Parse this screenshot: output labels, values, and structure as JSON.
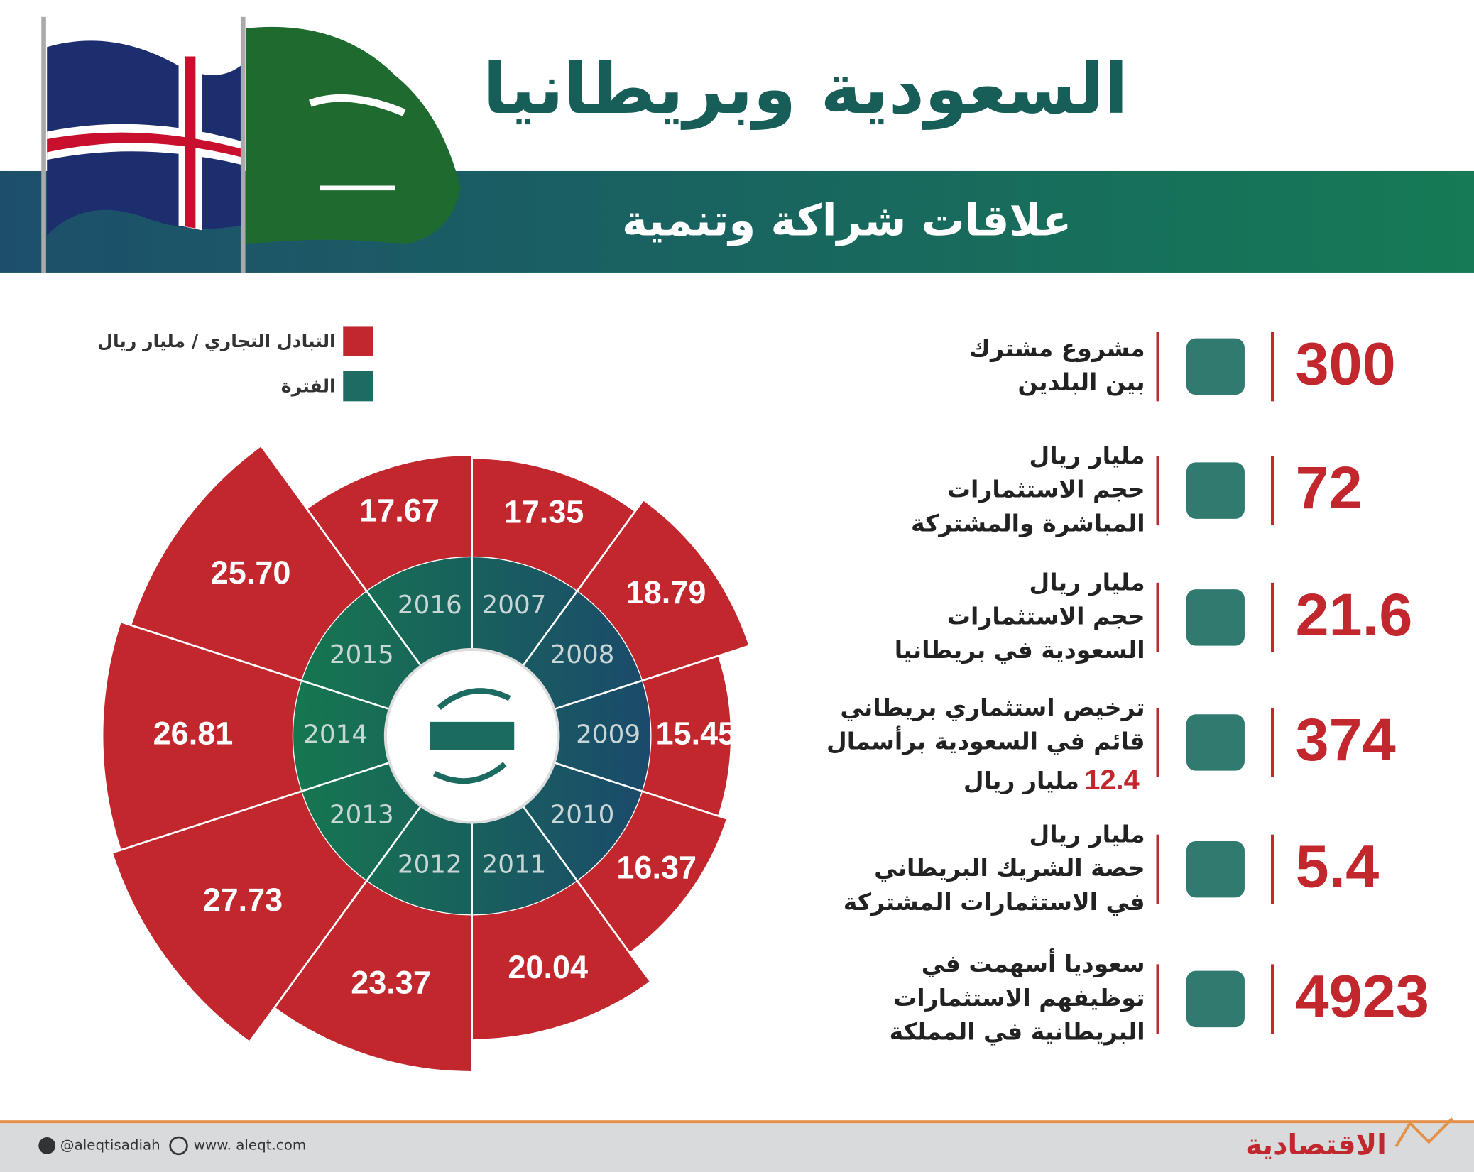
{
  "header": {
    "title": "السعودية وبريطانيا",
    "subtitle": "علاقات شراكة وتنمية"
  },
  "chart_data": {
    "type": "rose",
    "categories": [
      "2007",
      "2008",
      "2009",
      "2010",
      "2011",
      "2012",
      "2013",
      "2014",
      "2015",
      "2016"
    ],
    "category_legend": "الفترة",
    "category_color": "#1e6b63",
    "series": [
      {
        "name": "التبادل التجاري / مليار ريال",
        "color": "#c1272d",
        "values": [
          17.35,
          18.79,
          15.45,
          16.37,
          20.04,
          23.37,
          27.73,
          26.81,
          25.7,
          17.67
        ],
        "value_labels": [
          "17.35",
          "18.79",
          "15.45",
          "16.37",
          "20.04",
          "23.37",
          "27.73",
          "26.81",
          "25.70",
          "17.67"
        ]
      }
    ]
  },
  "stats": [
    {
      "number": 300,
      "lines": [
        "مشروع مشترك",
        "بين البلدين"
      ]
    },
    {
      "number": 72,
      "lines": [
        "مليار ريال",
        "حجم الاستثمارات",
        "المباشرة والمشتركة"
      ]
    },
    {
      "number": 21.6,
      "lines": [
        "مليار ريال",
        "حجم الاستثمارات",
        "السعودية في بريطانيا"
      ]
    },
    {
      "number": 374,
      "lines": [
        "ترخيص استثماري بريطاني",
        "قائم في السعودية برأسمال"
      ],
      "capital": 12.4,
      "capital_unit": "مليار ريال"
    },
    {
      "number": 5.4,
      "lines": [
        "مليار ريال",
        "حصة الشريك البريطاني",
        "في الاستثمارات المشتركة"
      ]
    },
    {
      "number": 4923,
      "lines": [
        "سعوديا أسهمت في",
        "توظيفهم الاستثمارات",
        "البريطانية في المملكة"
      ]
    }
  ],
  "footer": {
    "twitter": "@aleqtisadiah",
    "website": "www. aleqt.com",
    "logo": "الاقتصادية"
  }
}
